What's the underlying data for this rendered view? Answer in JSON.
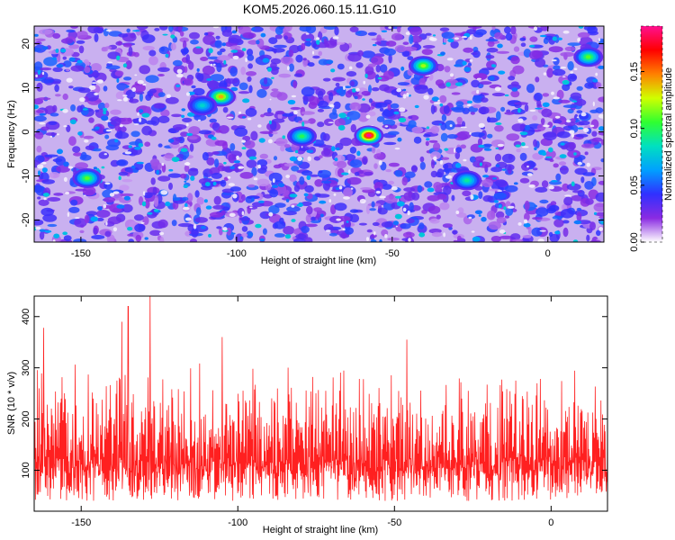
{
  "title": "KOM5.2026.060.15.11.G10",
  "chart_data": [
    {
      "type": "heatmap",
      "xlabel": "Height of straight line (km)",
      "ylabel": "Frequency (Hz)",
      "xlim": [
        -165,
        18
      ],
      "ylim": [
        -25,
        24
      ],
      "xticks": [
        -150,
        -100,
        -50,
        0
      ],
      "yticks": [
        -20,
        -10,
        0,
        10,
        20
      ],
      "colorbar": {
        "label": "Normalized spectral amplitude",
        "range": [
          0.0,
          0.19
        ],
        "ticks": [
          0.0,
          0.05,
          0.1,
          0.15
        ],
        "tick_labels": [
          "0.00",
          "0.05",
          "0.10",
          "0.15"
        ],
        "colors": [
          "#ffffff",
          "#8a2be2",
          "#3030ff",
          "#00a0ff",
          "#00e0c0",
          "#30ff30",
          "#d0ff00",
          "#ff8000",
          "#ff0000",
          "#ff1090"
        ]
      },
      "peaks": [
        {
          "x": -57.5,
          "y": -0.8,
          "value": 0.19
        },
        {
          "x": -105,
          "y": 8,
          "value": 0.14
        },
        {
          "x": -40,
          "y": 15,
          "value": 0.12
        },
        {
          "x": -148,
          "y": -10.5,
          "value": 0.11
        },
        {
          "x": 13,
          "y": 17,
          "value": 0.11
        },
        {
          "x": -79,
          "y": -1,
          "value": 0.1
        },
        {
          "x": -26,
          "y": -11,
          "value": 0.09
        },
        {
          "x": -111,
          "y": 6,
          "value": 0.08
        }
      ],
      "background_level": 0.03
    },
    {
      "type": "line",
      "xlabel": "Height of straight line (km)",
      "ylabel": "SNR (10 * v/v)",
      "xlim": [
        -165,
        18
      ],
      "ylim": [
        20,
        440
      ],
      "xticks": [
        -150,
        -100,
        -50,
        0
      ],
      "yticks": [
        100,
        200,
        300,
        400
      ],
      "grid": false,
      "series": [
        {
          "color": "#ff2020",
          "mean": 120,
          "typical_min": 40,
          "typical_max": 300,
          "peaks": [
            {
              "x": -128,
              "y": 440
            },
            {
              "x": -135,
              "y": 420
            },
            {
              "x": -137,
              "y": 390
            },
            {
              "x": -162,
              "y": 378
            },
            {
              "x": -105,
              "y": 360
            },
            {
              "x": -46,
              "y": 355
            }
          ]
        }
      ]
    }
  ]
}
